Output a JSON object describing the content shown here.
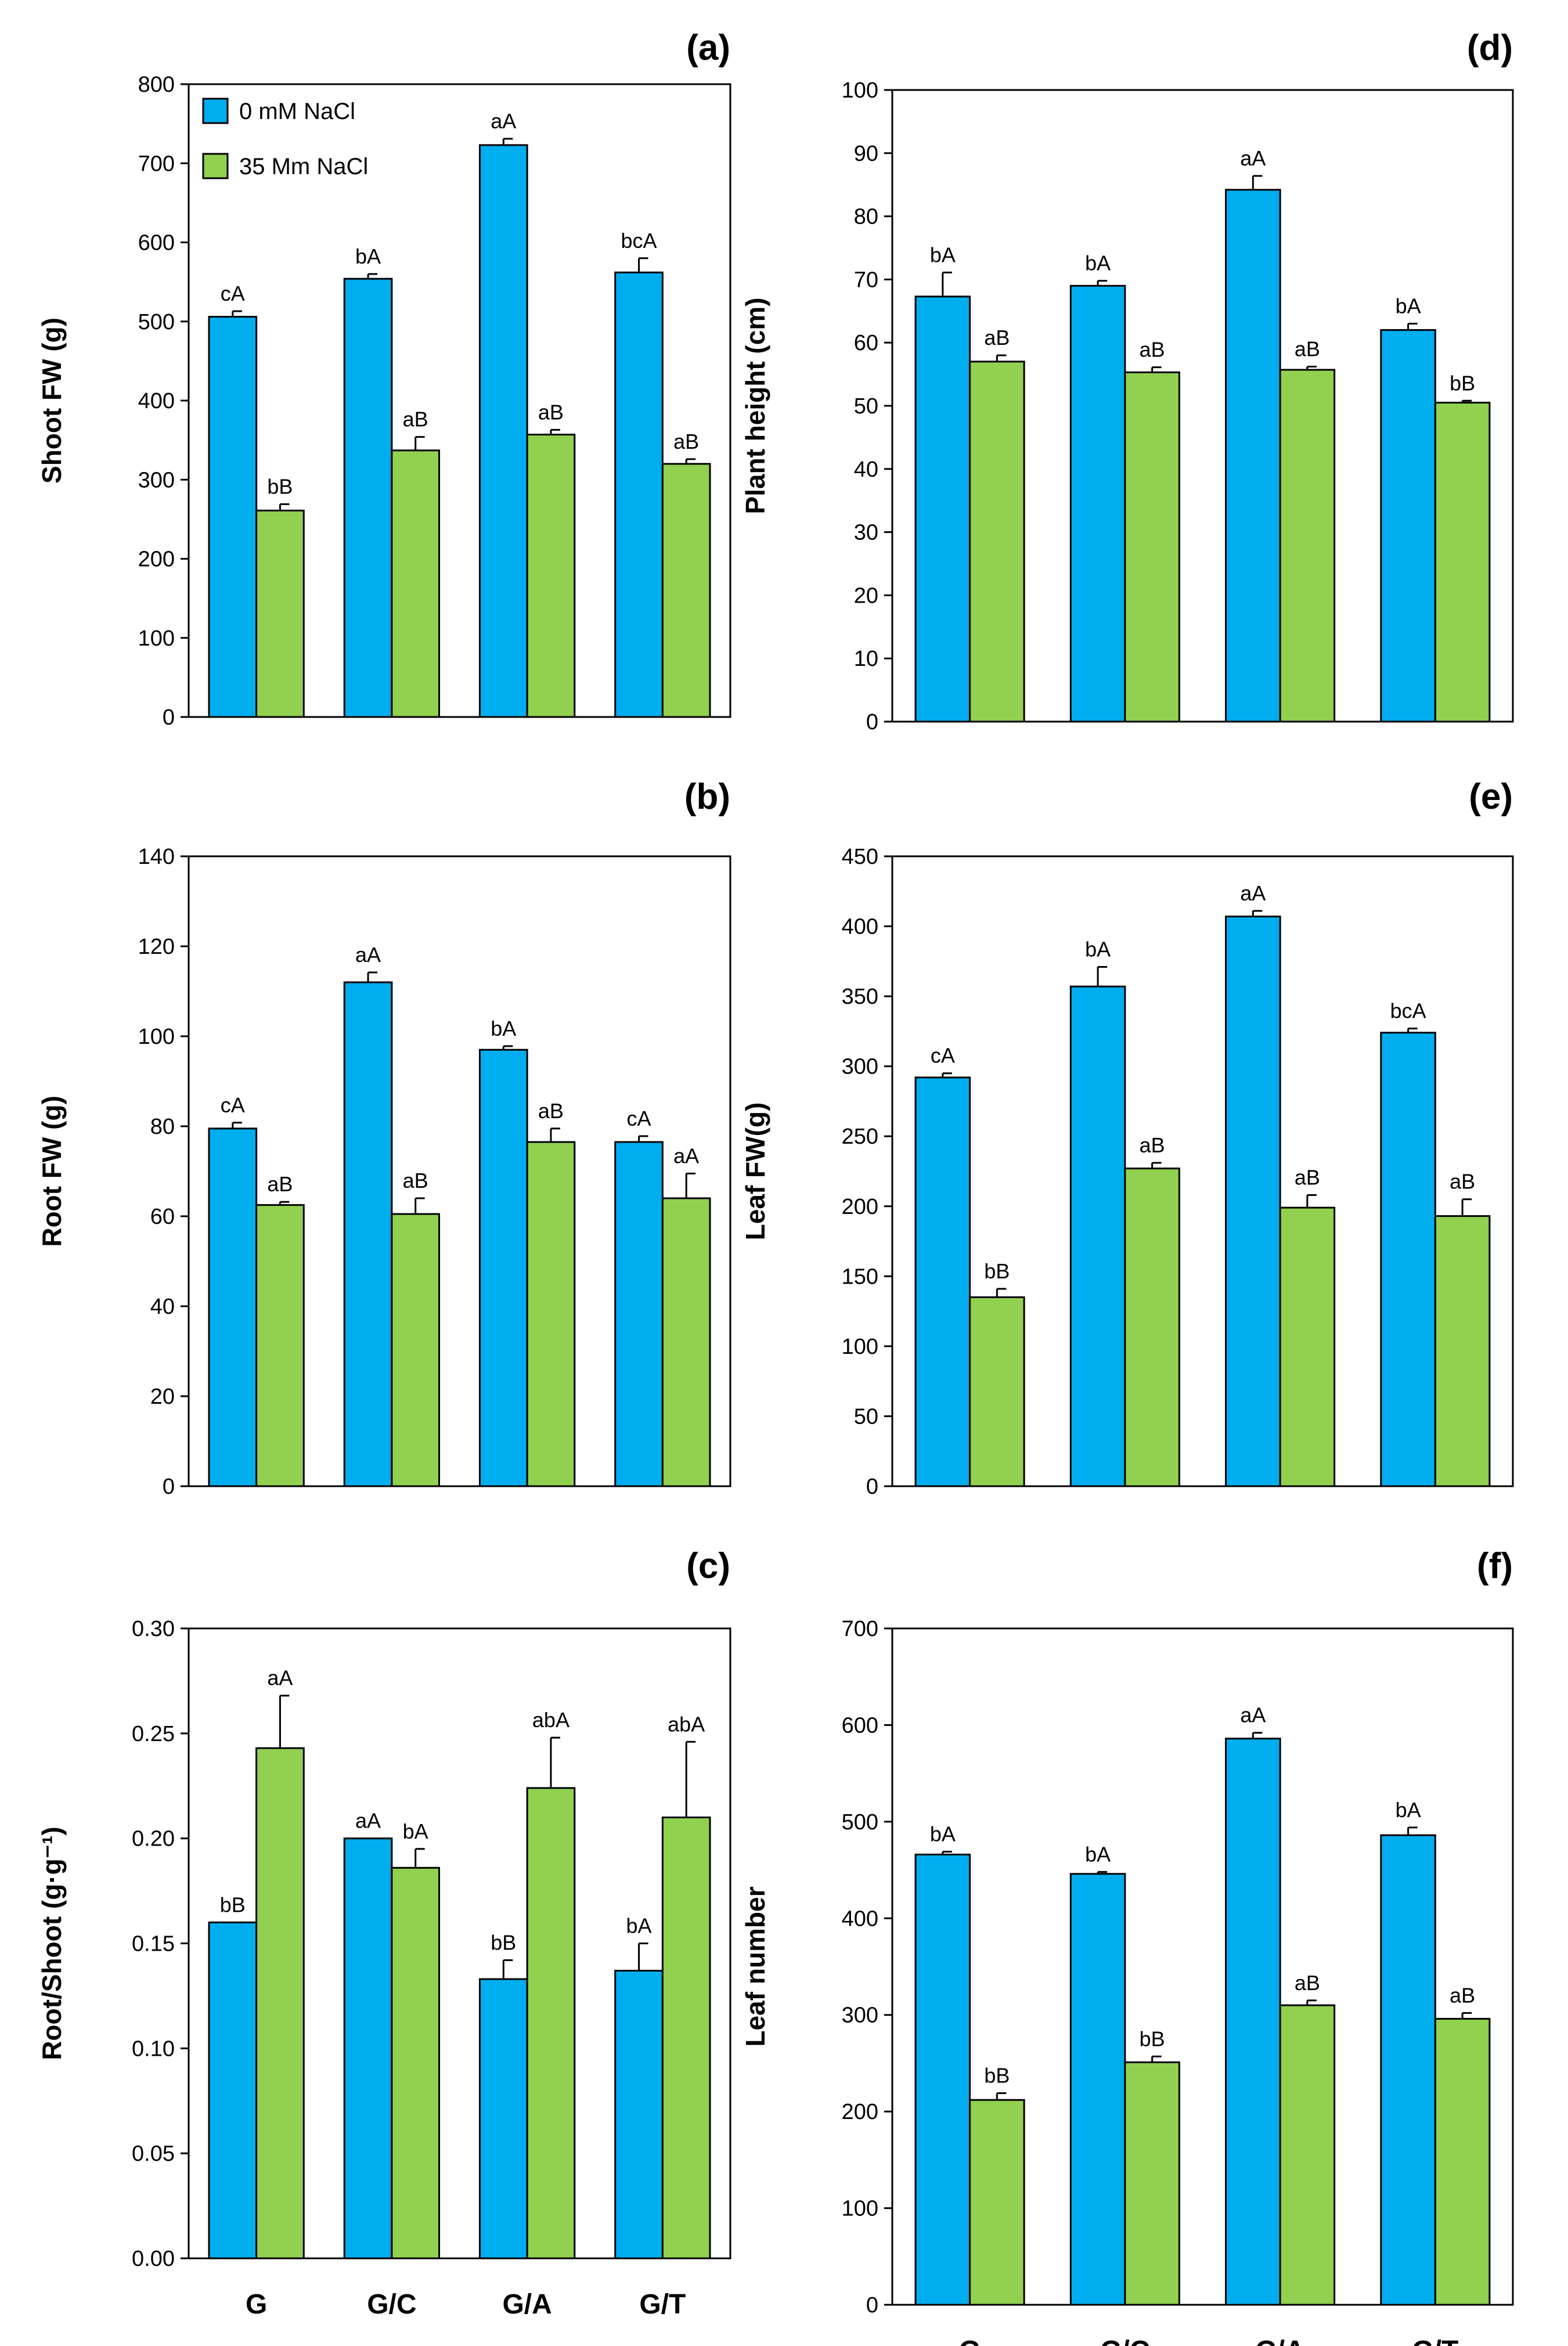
{
  "colors": {
    "control": "#00AEEF",
    "salt": "#92D050",
    "edge": "#000000"
  },
  "legend": [
    "0 mM NaCl",
    "35 Mm NaCl"
  ],
  "chart_data": [
    {
      "id": "a",
      "panel": "(a)",
      "type": "bar",
      "ylabel": "Shoot FW (g)",
      "ylim": [
        0,
        800
      ],
      "yticks": [
        "0",
        "100",
        "200",
        "300",
        "400",
        "500",
        "600",
        "700",
        "800"
      ],
      "categories": [
        "G",
        "G/C",
        "G/A",
        "G/T"
      ],
      "show_categories": false,
      "legend": true,
      "series": [
        {
          "name": "0 mM NaCl",
          "values": [
            506,
            554,
            723,
            562
          ],
          "errors": [
            7,
            6,
            8,
            18
          ],
          "labels": [
            "cA",
            "bA",
            "aA",
            "bcA"
          ]
        },
        {
          "name": "35 Mm NaCl",
          "values": [
            261,
            337,
            357,
            320
          ],
          "errors": [
            8,
            17,
            6,
            6
          ],
          "labels": [
            "bB",
            "aB",
            "aB",
            "aB"
          ]
        }
      ]
    },
    {
      "id": "b",
      "panel": "(b)",
      "type": "bar",
      "ylabel": "Root FW (g)",
      "ylim": [
        0,
        140
      ],
      "yticks": [
        "0",
        "20",
        "40",
        "60",
        "80",
        "100",
        "120",
        "140"
      ],
      "categories": [
        "G",
        "G/C",
        "G/A",
        "G/T"
      ],
      "show_categories": false,
      "legend": false,
      "series": [
        {
          "name": "0 mM NaCl",
          "values": [
            79.5,
            112,
            97,
            76.5
          ],
          "errors": [
            1.3,
            2.2,
            0.8,
            1.3
          ],
          "labels": [
            "cA",
            "aA",
            "bA",
            "cA"
          ]
        },
        {
          "name": "35 Mm NaCl",
          "values": [
            62.5,
            60.5,
            76.5,
            64
          ],
          "errors": [
            0.7,
            3.5,
            3,
            5.5
          ],
          "labels": [
            "aB",
            "aB",
            "aB",
            "aA"
          ]
        }
      ]
    },
    {
      "id": "c",
      "panel": "(c)",
      "type": "bar",
      "ylabel": "Root/Shoot (g·g⁻¹)",
      "ylim": [
        0,
        0.3
      ],
      "yticks": [
        "0.00",
        "0.05",
        "0.10",
        "0.15",
        "0.20",
        "0.25",
        "0.30"
      ],
      "categories": [
        "G",
        "G/C",
        "G/A",
        "G/T"
      ],
      "show_categories": true,
      "legend": false,
      "series": [
        {
          "name": "0 mM NaCl",
          "values": [
            0.16,
            0.2,
            0.133,
            0.137
          ],
          "errors": [
            0,
            0,
            0.009,
            0.013
          ],
          "labels": [
            "bB",
            "aA",
            "bB",
            "bA"
          ]
        },
        {
          "name": "35 Mm NaCl",
          "values": [
            0.243,
            0.186,
            0.224,
            0.21
          ],
          "errors": [
            0.025,
            0.009,
            0.024,
            0.036
          ],
          "labels": [
            "aA",
            "bA",
            "abA",
            "abA"
          ]
        }
      ]
    },
    {
      "id": "d",
      "panel": "(d)",
      "type": "bar",
      "ylabel": "Plant height (cm)",
      "ylim": [
        0,
        100
      ],
      "yticks": [
        "0",
        "10",
        "20",
        "30",
        "40",
        "50",
        "60",
        "70",
        "80",
        "90",
        "100"
      ],
      "categories": [
        "G",
        "G/C",
        "G/A",
        "G/T"
      ],
      "show_categories": false,
      "legend": false,
      "series": [
        {
          "name": "0 mM NaCl",
          "values": [
            67.3,
            69,
            84.2,
            62
          ],
          "errors": [
            3.8,
            0.8,
            2.2,
            1
          ],
          "labels": [
            "bA",
            "bA",
            "aA",
            "bA"
          ]
        },
        {
          "name": "35 Mm NaCl",
          "values": [
            57,
            55.3,
            55.7,
            50.5
          ],
          "errors": [
            1,
            0.8,
            0.5,
            0.3
          ],
          "labels": [
            "aB",
            "aB",
            "aB",
            "bB"
          ]
        }
      ]
    },
    {
      "id": "e",
      "panel": "(e)",
      "type": "bar",
      "ylabel": "Leaf FW(g)",
      "ylim": [
        0,
        450
      ],
      "yticks": [
        "0",
        "50",
        "100",
        "150",
        "200",
        "250",
        "300",
        "350",
        "400",
        "450"
      ],
      "categories": [
        "G",
        "G/C",
        "G/A",
        "G/T"
      ],
      "show_categories": false,
      "legend": false,
      "series": [
        {
          "name": "0 mM NaCl",
          "values": [
            292,
            357,
            407,
            324
          ],
          "errors": [
            3,
            14,
            4,
            3
          ],
          "labels": [
            "cA",
            "bA",
            "aA",
            "bcA"
          ]
        },
        {
          "name": "35 Mm NaCl",
          "values": [
            135,
            227,
            199,
            193
          ],
          "errors": [
            6,
            4,
            9,
            12
          ],
          "labels": [
            "bB",
            "aB",
            "aB",
            "aB"
          ]
        }
      ]
    },
    {
      "id": "f",
      "panel": "(f)",
      "type": "bar",
      "ylabel": "Leaf number",
      "ylim": [
        0,
        700
      ],
      "yticks": [
        "0",
        "100",
        "200",
        "300",
        "400",
        "500",
        "600",
        "700"
      ],
      "categories": [
        "G",
        "G/C",
        "G/A",
        "G/T"
      ],
      "show_categories": true,
      "legend": false,
      "series": [
        {
          "name": "0 mM NaCl",
          "values": [
            466,
            446,
            586,
            486
          ],
          "errors": [
            3,
            2,
            6,
            8
          ],
          "labels": [
            "bA",
            "bA",
            "aA",
            "bA"
          ]
        },
        {
          "name": "35 Mm NaCl",
          "values": [
            212,
            251,
            310,
            296
          ],
          "errors": [
            7,
            6,
            5,
            6
          ],
          "labels": [
            "bB",
            "bB",
            "aB",
            "aB"
          ]
        }
      ]
    }
  ]
}
